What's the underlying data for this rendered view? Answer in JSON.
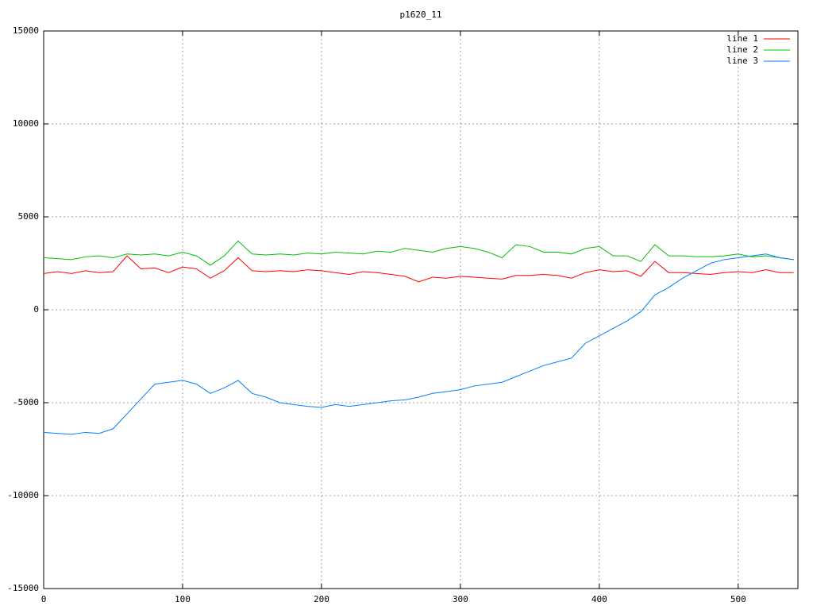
{
  "chart_data": {
    "type": "line",
    "title": "p1620_11",
    "x": [
      0,
      10,
      20,
      30,
      40,
      50,
      60,
      70,
      80,
      90,
      100,
      110,
      120,
      130,
      140,
      150,
      160,
      170,
      180,
      190,
      200,
      210,
      220,
      230,
      240,
      250,
      260,
      270,
      280,
      290,
      300,
      310,
      320,
      330,
      340,
      350,
      360,
      370,
      380,
      390,
      400,
      410,
      420,
      430,
      440,
      450,
      460,
      470,
      480,
      490,
      500,
      510,
      520,
      530,
      540
    ],
    "series": [
      {
        "name": "line 1",
        "color": "#ff0000",
        "values": [
          1950,
          2050,
          1950,
          2100,
          2000,
          2050,
          2900,
          2200,
          2250,
          2000,
          2300,
          2200,
          1700,
          2100,
          2800,
          2100,
          2050,
          2100,
          2050,
          2150,
          2100,
          2000,
          1900,
          2050,
          2000,
          1900,
          1800,
          1500,
          1750,
          1700,
          1800,
          1750,
          1700,
          1650,
          1850,
          1850,
          1900,
          1850,
          1700,
          2000,
          2150,
          2050,
          2100,
          1800,
          2600,
          2000,
          2000,
          1950,
          1900,
          2000,
          2050,
          2000,
          2150,
          2000,
          2000
        ]
      },
      {
        "name": "line 2",
        "color": "#00c000",
        "values": [
          2800,
          2750,
          2700,
          2850,
          2900,
          2800,
          3000,
          2950,
          3000,
          2900,
          3100,
          2900,
          2400,
          2900,
          3700,
          3000,
          2950,
          3000,
          2950,
          3050,
          3000,
          3100,
          3050,
          3000,
          3150,
          3100,
          3300,
          3200,
          3100,
          3300,
          3400,
          3300,
          3100,
          2800,
          3500,
          3400,
          3100,
          3100,
          3000,
          3300,
          3400,
          2900,
          2900,
          2600,
          3500,
          2900,
          2900,
          2850,
          2850,
          2900,
          3000,
          2850,
          2900,
          2800,
          2700
        ]
      },
      {
        "name": "line 3",
        "color": "#0080ff",
        "values": [
          -6600,
          -6650,
          -6700,
          -6600,
          -6650,
          -6400,
          -5600,
          -4800,
          -4000,
          -3900,
          -3800,
          -4000,
          -4500,
          -4200,
          -3800,
          -4500,
          -4700,
          -5000,
          -5100,
          -5200,
          -5250,
          -5100,
          -5200,
          -5100,
          -5000,
          -4900,
          -4850,
          -4700,
          -4500,
          -4400,
          -4300,
          -4100,
          -4000,
          -3900,
          -3600,
          -3300,
          -3000,
          -2800,
          -2600,
          -1800,
          -1400,
          -1000,
          -600,
          -100,
          800,
          1200,
          1700,
          2100,
          2500,
          2700,
          2800,
          2900,
          3000,
          2800,
          2700
        ]
      }
    ],
    "xlim": [
      0,
      543
    ],
    "xticks": [
      0,
      100,
      200,
      300,
      400,
      500
    ],
    "ylim": [
      -15000,
      15000
    ],
    "yticks": [
      -15000,
      -10000,
      -5000,
      0,
      5000,
      10000,
      15000
    ],
    "grid": true,
    "legend": "top-right"
  }
}
